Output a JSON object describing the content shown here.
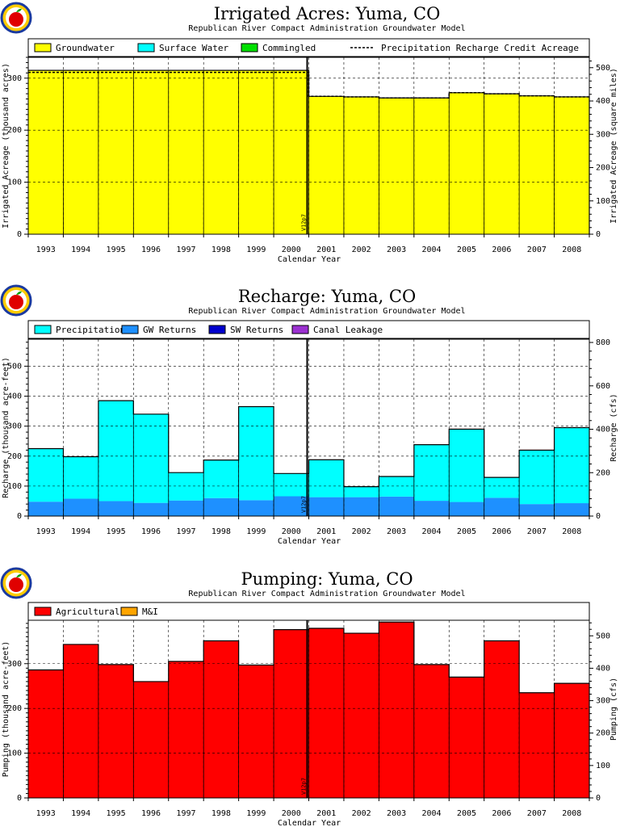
{
  "chart_data": [
    {
      "type": "area",
      "title": "Irrigated Acres: Yuma, CO",
      "subtitle": "Republican River Compact Administration Groundwater Model",
      "xlabel": "Calendar Year",
      "ylabel": "Irrigated Acreage (thousand acres)",
      "ylabel_right": "Irrigated Acreage (square miles)",
      "categories": [
        "1993",
        "1994",
        "1995",
        "1996",
        "1997",
        "1998",
        "1999",
        "2000",
        "2001",
        "2002",
        "2003",
        "2004",
        "2005",
        "2006",
        "2007",
        "2008"
      ],
      "ylim": [
        0,
        340
      ],
      "yticks": [
        0,
        100,
        200,
        300
      ],
      "ylim_right": [
        0,
        531
      ],
      "yticks_right": [
        0,
        100,
        200,
        300,
        400,
        500
      ],
      "grid": true,
      "legend_position": "top",
      "series": [
        {
          "name": "Groundwater",
          "color": "#ffff00",
          "values": [
            315,
            315,
            315,
            315,
            315,
            315,
            315,
            315,
            265,
            264,
            262,
            262,
            272,
            270,
            266,
            264
          ]
        },
        {
          "name": "Surface Water",
          "color": "#00ffff",
          "values": [
            0,
            0,
            0,
            0,
            0,
            0,
            0,
            0,
            0,
            0,
            0,
            0,
            0,
            0,
            0,
            0
          ]
        },
        {
          "name": "Commingled",
          "color": "#00e000",
          "values": [
            0,
            0,
            0,
            0,
            0,
            0,
            0,
            0,
            0,
            0,
            0,
            0,
            0,
            0,
            0,
            0
          ]
        }
      ],
      "dashed_series": {
        "name": "Precipitation Recharge Credit Acreage",
        "values": [
          311,
          311,
          311,
          311,
          311,
          311,
          311,
          311,
          265,
          264,
          262,
          262,
          272,
          270,
          266,
          264
        ]
      },
      "marker": {
        "label": "V12p7",
        "at": 8
      }
    },
    {
      "type": "area",
      "title": "Recharge: Yuma, CO",
      "subtitle": "Republican River Compact Administration Groundwater Model",
      "xlabel": "Calendar Year",
      "ylabel": "Recharge (thousand acre-feet)",
      "ylabel_right": "Recharge (cfs)",
      "categories": [
        "1993",
        "1994",
        "1995",
        "1996",
        "1997",
        "1998",
        "1999",
        "2000",
        "2001",
        "2002",
        "2003",
        "2004",
        "2005",
        "2006",
        "2007",
        "2008"
      ],
      "ylim": [
        0,
        590
      ],
      "yticks": [
        0,
        100,
        200,
        300,
        400,
        500
      ],
      "ylim_right": [
        0,
        815
      ],
      "yticks_right": [
        0,
        200,
        400,
        600,
        800
      ],
      "grid": true,
      "legend_position": "top",
      "series": [
        {
          "name": "GW Returns",
          "color": "#1e90ff",
          "values": [
            48,
            58,
            50,
            44,
            52,
            60,
            53,
            66,
            63,
            63,
            65,
            51,
            47,
            61,
            40,
            43
          ]
        },
        {
          "name": "SW Returns",
          "color": "#0000cd",
          "values": [
            0,
            0,
            0,
            0,
            0,
            0,
            0,
            0,
            0,
            0,
            0,
            0,
            0,
            0,
            0,
            0
          ]
        },
        {
          "name": "Canal Leakage",
          "color": "#9b30d0",
          "values": [
            0,
            0,
            0,
            0,
            0,
            0,
            0,
            0,
            0,
            0,
            0,
            0,
            0,
            0,
            0,
            0
          ]
        },
        {
          "name": "Precipitation",
          "color": "#00ffff",
          "values": [
            177,
            140,
            335,
            296,
            93,
            127,
            312,
            76,
            125,
            35,
            67,
            187,
            243,
            68,
            180,
            252
          ]
        }
      ],
      "marker": {
        "label": "V12p7",
        "at": 8
      }
    },
    {
      "type": "area",
      "title": "Pumping: Yuma, CO",
      "subtitle": "Republican River Compact Administration Groundwater Model",
      "xlabel": "Calendar Year",
      "ylabel": "Pumping (thousand acre-feet)",
      "ylabel_right": "Pumping (cfs)",
      "categories": [
        "1993",
        "1994",
        "1995",
        "1996",
        "1997",
        "1998",
        "1999",
        "2000",
        "2001",
        "2002",
        "2003",
        "2004",
        "2005",
        "2006",
        "2007",
        "2008"
      ],
      "ylim": [
        0,
        397
      ],
      "yticks": [
        0,
        100,
        200,
        300
      ],
      "ylim_right": [
        0,
        548
      ],
      "yticks_right": [
        0,
        100,
        200,
        300,
        400,
        500
      ],
      "grid": true,
      "legend_position": "top",
      "series": [
        {
          "name": "Agricultural",
          "color": "#ff0000",
          "values": [
            286,
            343,
            298,
            260,
            305,
            351,
            297,
            376,
            379,
            368,
            393,
            298,
            270,
            351,
            235,
            256
          ]
        },
        {
          "name": "M&I",
          "color": "#ffa500",
          "values": [
            0,
            0,
            0,
            0,
            0,
            0,
            0,
            0,
            0,
            0,
            0,
            0,
            0,
            0,
            0,
            0
          ]
        }
      ],
      "marker": {
        "label": "V12p7",
        "at": 8
      }
    }
  ],
  "legend_order": [
    [
      "Groundwater",
      "Surface Water",
      "Commingled",
      "Precipitation Recharge Credit Acreage"
    ],
    [
      "Precipitation",
      "GW Returns",
      "SW Returns",
      "Canal Leakage"
    ],
    [
      "Agricultural",
      "M&I"
    ]
  ]
}
